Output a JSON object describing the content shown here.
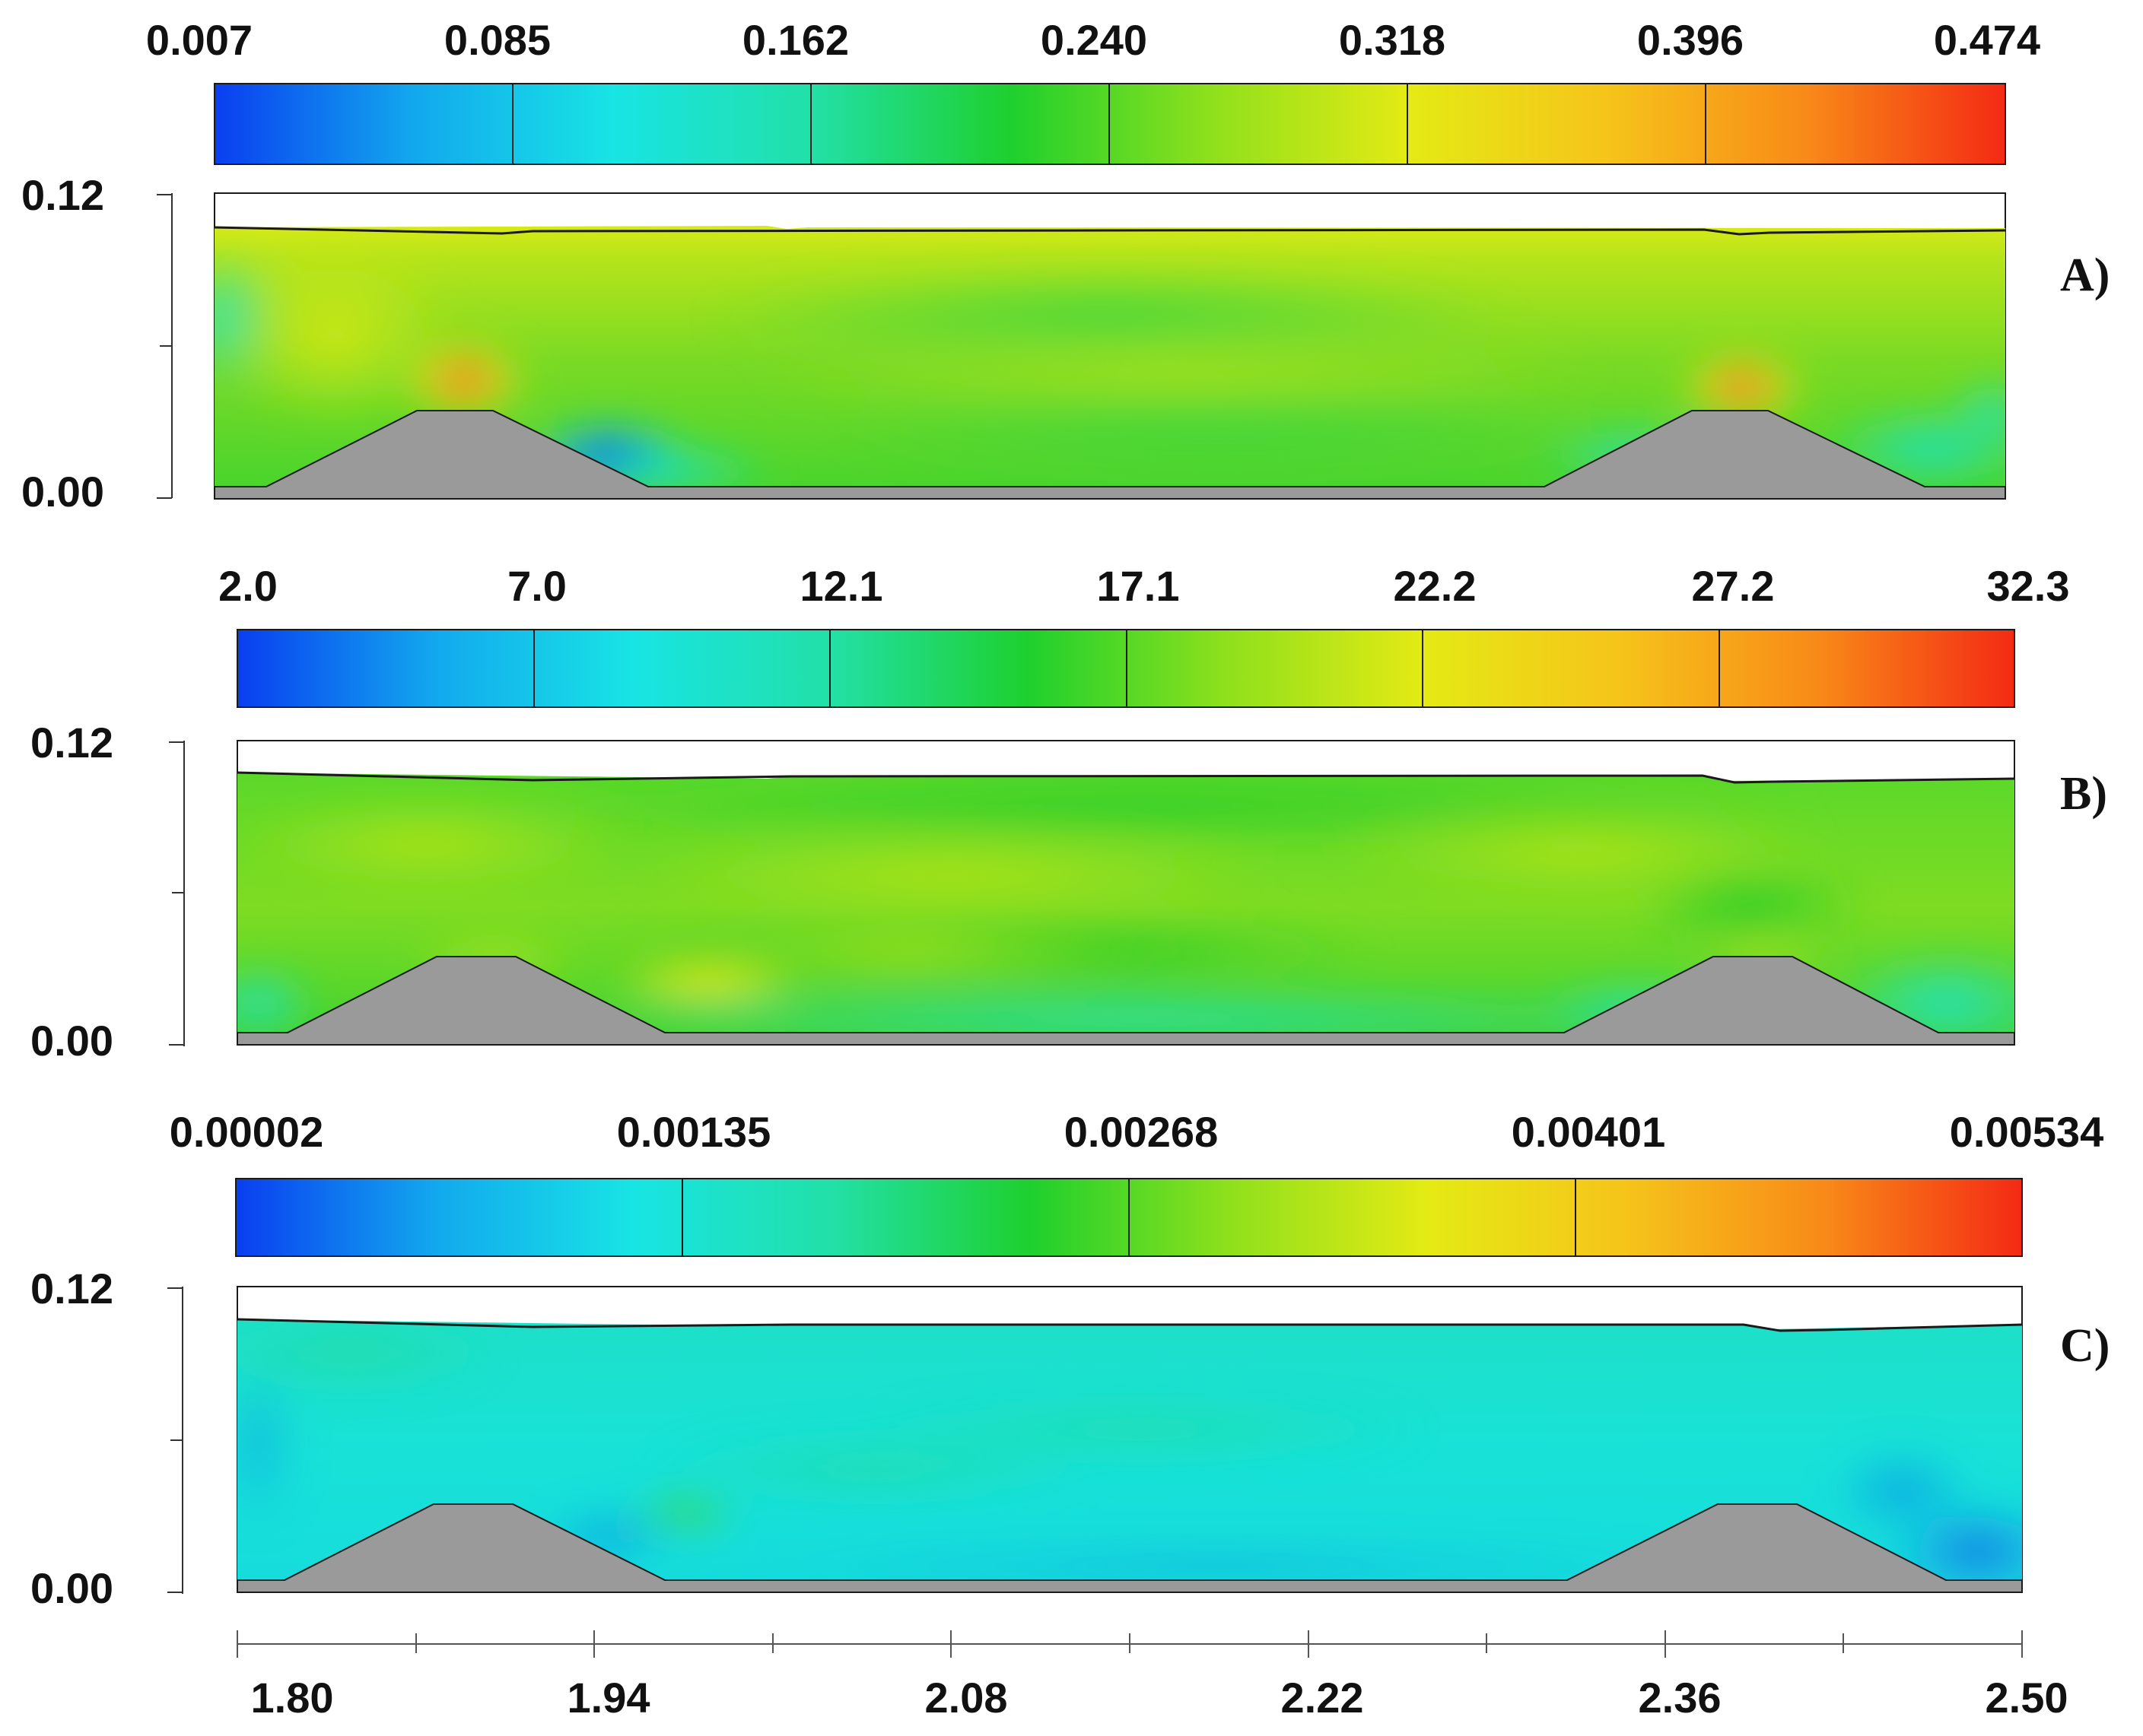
{
  "colormap": [
    "#0a3ef0",
    "#12a8ee",
    "#18e4e4",
    "#22e0a8",
    "#1ed02e",
    "#8ee01c",
    "#e4ea14",
    "#f6c41a",
    "#f88a18",
    "#f42a14"
  ],
  "colors": {
    "terrain": "#9a9a9a",
    "outline": "#1a1a1a"
  },
  "panels": [
    {
      "label": "A)",
      "colorbar_labels": [
        "0.007",
        "0.085",
        "0.162",
        "0.240",
        "0.318",
        "0.396",
        "0.474"
      ],
      "y_ticks": [
        "0.12",
        "0.00"
      ]
    },
    {
      "label": "B)",
      "colorbar_labels": [
        "2.0",
        "7.0",
        "12.1",
        "17.1",
        "22.2",
        "27.2",
        "32.3"
      ],
      "y_ticks": [
        "0.12",
        "0.00"
      ]
    },
    {
      "label": "C)",
      "colorbar_labels": [
        "0.00002",
        "0.00135",
        "0.00268",
        "0.00401",
        "0.00534"
      ],
      "y_ticks": [
        "0.12",
        "0.00"
      ]
    }
  ],
  "x_axis": {
    "tick_labels": [
      "1.80",
      "1.94",
      "2.08",
      "2.22",
      "2.36",
      "2.50"
    ]
  }
}
